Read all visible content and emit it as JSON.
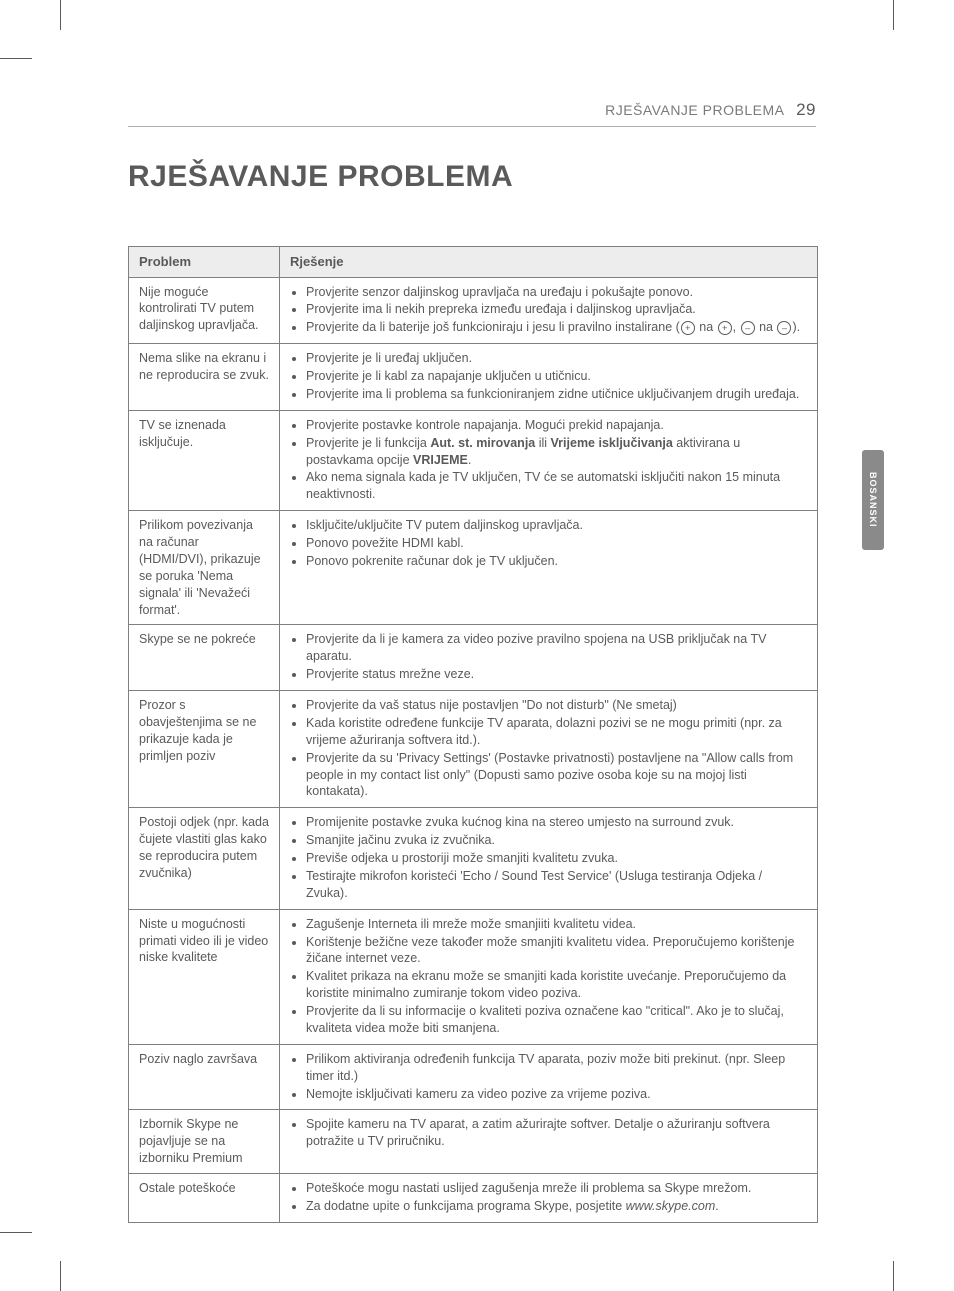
{
  "running_head": {
    "section": "RJEŠAVANJE PROBLEMA",
    "page_num": "29"
  },
  "side_tab": "BOSANSKI",
  "title": "RJEŠAVANJE PROBLEMA",
  "glyphs": {
    "plus": "+",
    "minus": "–"
  },
  "table": {
    "head": {
      "problem": "Problem",
      "solution": "Rješenje"
    },
    "rows": [
      {
        "problem": "Nije moguće kontrolirati TV putem daljinskog upravljača.",
        "items": [
          {
            "t": "Provjerite senzor daljinskog upravljača na uređaju i pokušajte ponovo."
          },
          {
            "t": "Provjerite ima li nekih prepreka između uređaja i daljinskog upravljača."
          },
          {
            "pre": "Provjerite da li baterije još funkcioniraju i jesu li pravilno instalirane (",
            "mid": " na ",
            "sep": ", ",
            "mid2": " na ",
            "post": ").",
            "special": "battery"
          }
        ]
      },
      {
        "problem": "Nema slike na ekranu i ne reproducira se zvuk.",
        "items": [
          {
            "t": "Provjerite je li uređaj uključen."
          },
          {
            "t": "Provjerite je li kabl za napajanje uključen u utičnicu."
          },
          {
            "t": "Provjerite ima li problema sa funkcioniranjem zidne utičnice uključivanjem drugih uređaja."
          }
        ]
      },
      {
        "problem": "TV se iznenada isključuje.",
        "items": [
          {
            "t": "Provjerite postavke kontrole napajanja. Mogući prekid napajanja."
          },
          {
            "pre": "Provjerite je li funkcija ",
            "b1": "Aut. st. mirovanja",
            "mid": " ili ",
            "b2": "Vrijeme isključivanja",
            "mid2": " aktivirana u postavkama opcije ",
            "b3": "VRIJEME",
            "post": ".",
            "special": "boldmix"
          },
          {
            "t": "Ako nema signala kada je TV uključen, TV će se automatski isključiti nakon 15 minuta neaktivnosti."
          }
        ]
      },
      {
        "problem": "Prilikom povezivanja na računar (HDMI/DVI), prikazuje se poruka 'Nema signala' ili 'Nevažeći format'.",
        "items": [
          {
            "t": "Isključite/uključite TV putem daljinskog upravljača."
          },
          {
            "t": "Ponovo povežite HDMI kabl."
          },
          {
            "t": "Ponovo pokrenite računar dok je TV uključen."
          }
        ]
      },
      {
        "problem": "Skype se ne pokreće",
        "items": [
          {
            "t": "Provjerite da li je kamera za video pozive pravilno spojena na USB priključak na TV aparatu."
          },
          {
            "t": "Provjerite status mrežne veze."
          }
        ]
      },
      {
        "problem": "Prozor s obavještenjima se ne prikazuje kada je primljen poziv",
        "items": [
          {
            "t": "Provjerite da vaš status nije postavljen \"Do not disturb\" (Ne smetaj)"
          },
          {
            "t": "Kada koristite određene funkcije TV aparata, dolazni pozivi se ne mogu primiti (npr. za vrijeme ažuriranja softvera itd.)."
          },
          {
            "t": "Provjerite da su 'Privacy Settings' (Postavke privatnosti) postavljene na \"Allow calls from people in my contact list only\" (Dopusti samo pozive osoba koje su na mojoj listi kontakata)."
          }
        ]
      },
      {
        "problem": "Postoji odjek (npr. kada čujete vlastiti glas kako se reproducira putem zvučnika)",
        "items": [
          {
            "t": "Promijenite postavke zvuka kućnog kina na stereo umjesto na surround zvuk."
          },
          {
            "t": "Smanjite jačinu zvuka iz zvučnika."
          },
          {
            "t": "Previše odjeka u prostoriji može smanjiti kvalitetu zvuka."
          },
          {
            "t": "Testirajte mikrofon koristeći 'Echo / Sound Test Service' (Usluga testiranja Odjeka / Zvuka)."
          }
        ]
      },
      {
        "problem": "Niste u mogućnosti primati video ili je video niske kvalitete",
        "items": [
          {
            "t": "Zagušenje Interneta ili mreže može smanjiiti kvalitetu videa."
          },
          {
            "t": "Korištenje bežične veze također može smanjiti kvalitetu videa. Preporučujemo korištenje žičane internet veze."
          },
          {
            "t": "Kvalitet prikaza na ekranu može se smanjiti kada koristite uvećanje. Preporučujemo da koristite minimalno zumiranje tokom video poziva."
          },
          {
            "t": "Provjerite da li su informacije o kvaliteti poziva označene kao \"critical\". Ako je to slučaj, kvaliteta videa može biti smanjena."
          }
        ]
      },
      {
        "problem": "Poziv naglo završava",
        "items": [
          {
            "t": "Prilikom aktiviranja određenih funkcija TV aparata, poziv može biti prekinut. (npr. Sleep timer itd.)"
          },
          {
            "t": "Nemojte isključivati kameru za video pozive za vrijeme poziva."
          }
        ]
      },
      {
        "problem": "Izbornik Skype ne pojavljuje se na izborniku Premium",
        "items": [
          {
            "t": "Spojite kameru na TV aparat, a zatim ažurirajte softver. Detalje o ažuriranju softvera potražite u TV priručniku."
          }
        ]
      },
      {
        "problem": "Ostale poteškoće",
        "items": [
          {
            "t": "Poteškoće mogu nastati uslijed zagušenja mreže ili problema sa Skype mrežom."
          },
          {
            "pre": "Za dodatne upite o funkcijama programa Skype, posjetite ",
            "i": "www.skype.com",
            "post": ".",
            "special": "italic"
          }
        ]
      }
    ]
  }
}
